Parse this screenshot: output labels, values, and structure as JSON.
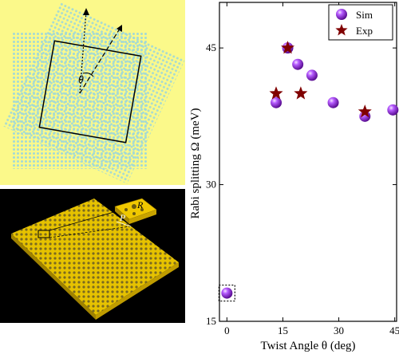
{
  "figure_top": {
    "angle_symbol": "θ"
  },
  "figure_bottom": {
    "label_R": "R",
    "label_P": "P",
    "label_d": "d"
  },
  "chart_data": {
    "type": "scatter",
    "xlabel": "Twist Angle θ (deg)",
    "ylabel": "Rabi splitting Ω (meV)",
    "xlim": [
      -2,
      45.5
    ],
    "ylim": [
      15,
      50
    ],
    "xticks": [
      0,
      15,
      30,
      45
    ],
    "yticks": [
      15,
      30,
      45
    ],
    "legend_position": "top-right",
    "series": [
      {
        "name": "Sim",
        "marker": "sphere",
        "color": "#9b30ff",
        "x": [
          0,
          13.2,
          16.3,
          19.0,
          22.8,
          28.5,
          37.0,
          44.5
        ],
        "y": [
          18.1,
          39.0,
          45.0,
          43.2,
          42.0,
          39.0,
          37.5,
          38.2
        ]
      },
      {
        "name": "Exp",
        "marker": "star",
        "color": "#800000",
        "x": [
          13.2,
          16.3,
          19.8,
          37.0
        ],
        "y": [
          40.0,
          45.0,
          40.0,
          38.0
        ]
      }
    ],
    "highlight_box": {
      "x": 0,
      "y": 18.1
    }
  }
}
